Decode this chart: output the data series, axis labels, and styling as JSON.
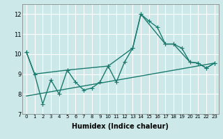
{
  "title": "",
  "xlabel": "Humidex (Indice chaleur)",
  "bg_color": "#cce8e8",
  "grid_color": "#ffffff",
  "line_color": "#1a7a6e",
  "xlim": [
    -0.5,
    23.5
  ],
  "ylim": [
    7,
    12.5
  ],
  "yticks": [
    7,
    8,
    9,
    10,
    11,
    12
  ],
  "xticks": [
    0,
    1,
    2,
    3,
    4,
    5,
    6,
    7,
    8,
    9,
    10,
    11,
    12,
    13,
    14,
    15,
    16,
    17,
    18,
    19,
    20,
    21,
    22,
    23
  ],
  "series1_x": [
    0,
    1,
    2,
    3,
    4,
    5,
    6,
    7,
    8,
    9,
    10,
    11,
    12,
    13,
    14,
    15,
    16,
    17,
    18,
    19,
    20,
    21,
    22,
    23
  ],
  "series1_y": [
    10.1,
    9.0,
    7.5,
    8.7,
    8.0,
    9.2,
    8.6,
    8.2,
    8.3,
    8.6,
    9.4,
    8.6,
    9.6,
    10.3,
    12.0,
    11.65,
    11.35,
    10.5,
    10.5,
    10.3,
    9.6,
    9.55,
    9.3,
    9.55
  ],
  "series2_x": [
    0,
    1,
    5,
    10,
    13,
    14,
    17,
    18,
    20,
    21,
    22,
    23
  ],
  "series2_y": [
    10.1,
    9.0,
    9.2,
    9.4,
    10.3,
    12.0,
    10.5,
    10.5,
    9.6,
    9.55,
    9.3,
    9.55
  ],
  "series3_x": [
    0,
    23
  ],
  "series3_y": [
    7.9,
    9.55
  ],
  "marker_size": 3,
  "linewidth": 1.0,
  "tick_fontsize": 5,
  "xlabel_fontsize": 7
}
